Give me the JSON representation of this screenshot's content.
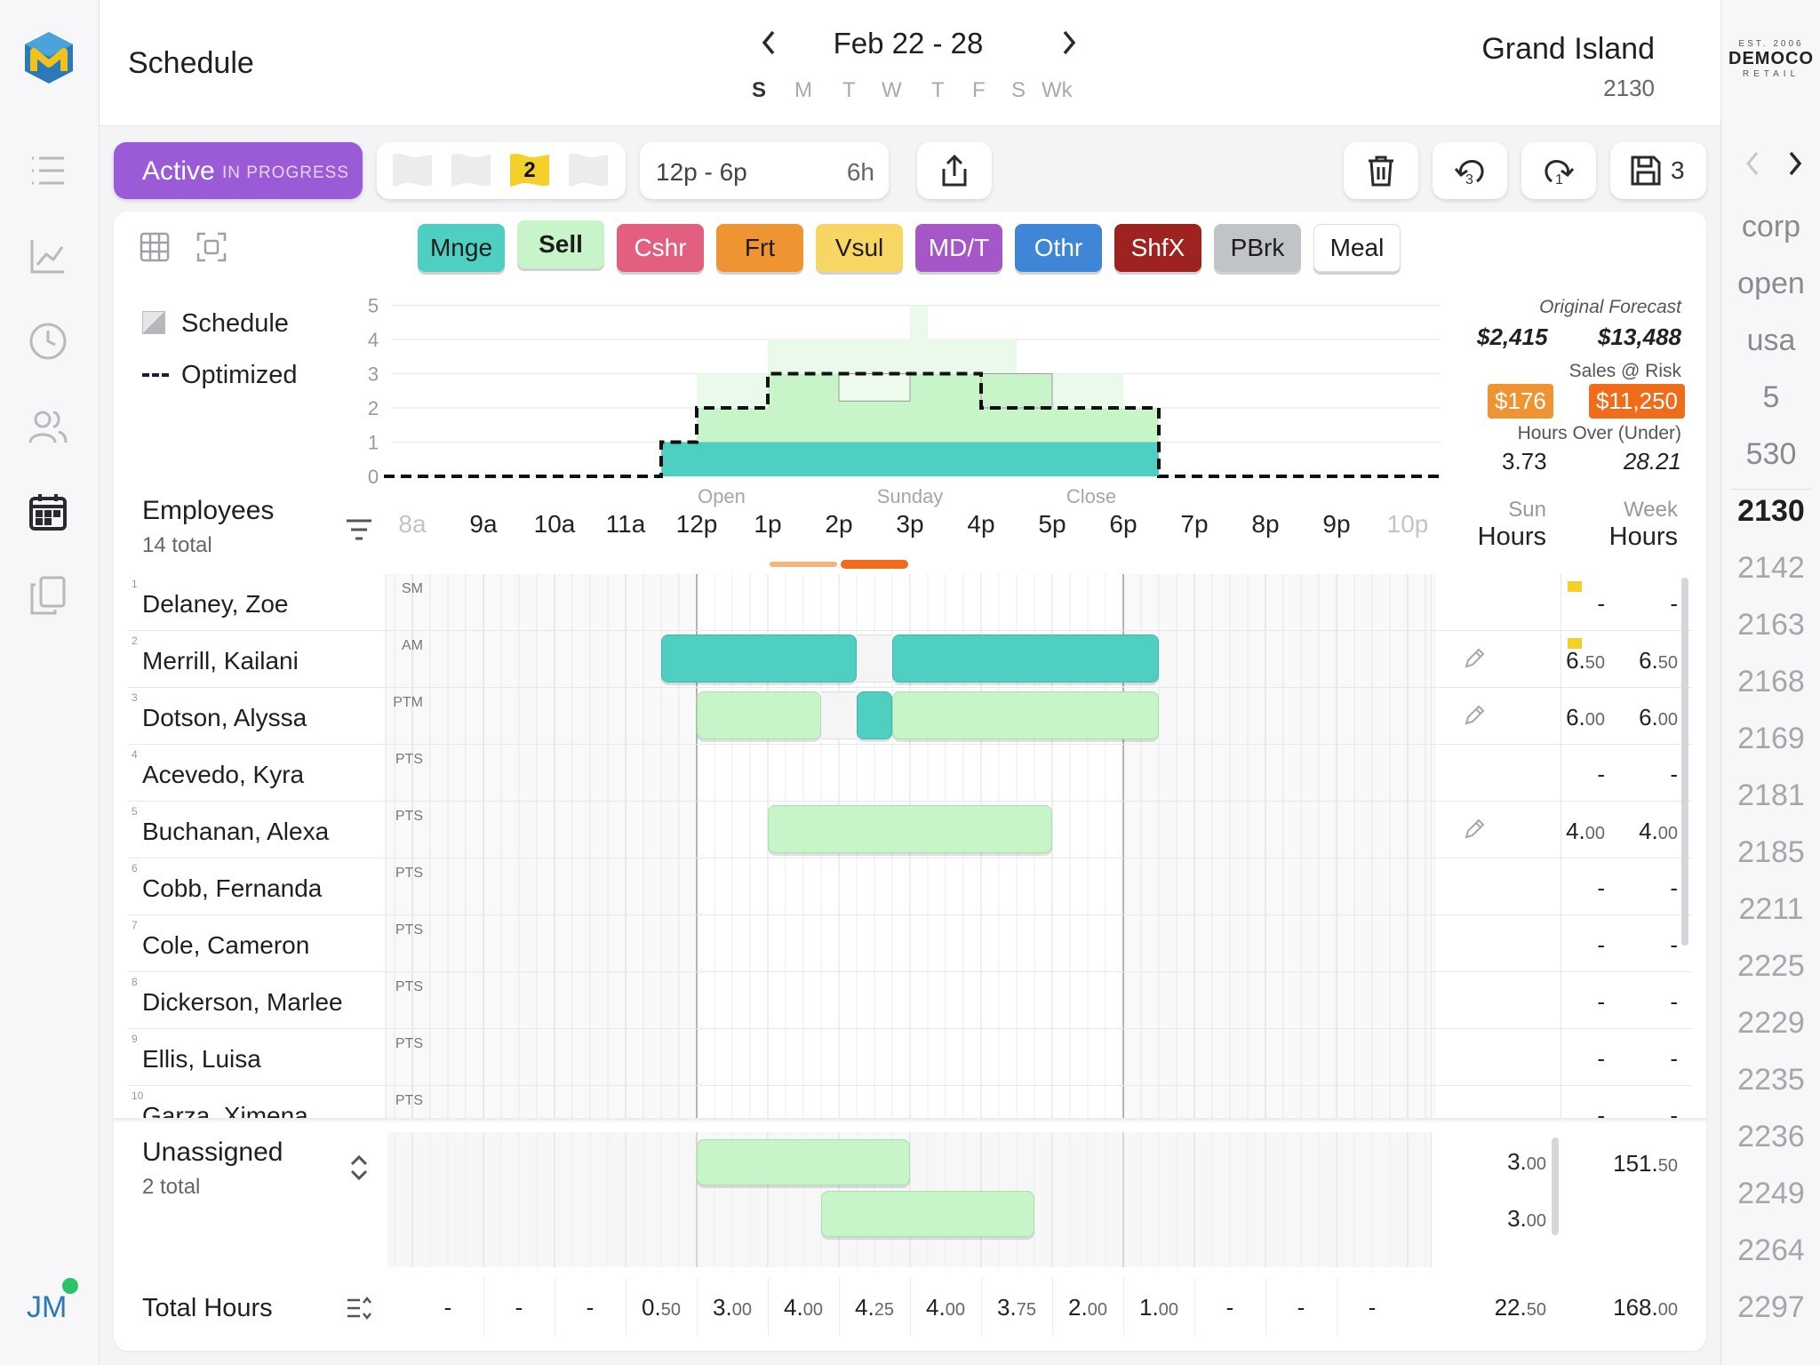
{
  "app": {
    "title": "Schedule",
    "user_initials": "JM",
    "brand_logo_lines": [
      "EST. 2006",
      "DEMOCO",
      "RETAIL"
    ]
  },
  "header": {
    "date_range": "Feb 22 - 28",
    "days": [
      "S",
      "M",
      "T",
      "W",
      "T",
      "F",
      "S",
      "Wk"
    ],
    "store_name": "Grand Island",
    "store_number": "2130"
  },
  "toolbar": {
    "status_main": "Active",
    "status_sub": "IN PROGRESS",
    "flag_count": "2",
    "time_range": "12p - 6p",
    "time_duration": "6h",
    "undo_count": "3",
    "redo_count": "1",
    "save_count": "3"
  },
  "chips": [
    {
      "label": "Mnge",
      "color": "#4fcec2",
      "text": "#1d1d1d"
    },
    {
      "label": "Sell",
      "color": "#c7f4c8",
      "text": "#1d1d1d"
    },
    {
      "label": "Cshr",
      "color": "#e35f80",
      "text": "#ffffff"
    },
    {
      "label": "Frt",
      "color": "#ef9432",
      "text": "#1d1d1d"
    },
    {
      "label": "Vsul",
      "color": "#f6d764",
      "text": "#1d1d1d"
    },
    {
      "label": "MD/T",
      "color": "#a557c7",
      "text": "#ffffff"
    },
    {
      "label": "Othr",
      "color": "#3f86d6",
      "text": "#ffffff"
    },
    {
      "label": "ShfX",
      "color": "#9e2320",
      "text": "#ffffff"
    },
    {
      "label": "PBrk",
      "color": "#c0c3c7",
      "text": "#1d1d1d"
    },
    {
      "label": "Meal",
      "color": "#ffffff",
      "text": "#1d1d1d"
    }
  ],
  "legend": {
    "schedule": "Schedule",
    "optimized": "Optimized"
  },
  "chart_data": {
    "type": "area",
    "y_ticks": [
      "5",
      "4",
      "3",
      "2",
      "1",
      "0"
    ],
    "ylim": [
      0,
      5
    ],
    "x": [
      "8a",
      "9a",
      "10a",
      "11a",
      "12p",
      "1p",
      "2p",
      "3p",
      "4p",
      "5p",
      "6p",
      "7p",
      "8p",
      "9p",
      "10p"
    ],
    "series": [
      {
        "name": "Schedule",
        "values": [
          0,
          0,
          0,
          0,
          2,
          3,
          3,
          3,
          2,
          2,
          0,
          0,
          0,
          0,
          0
        ]
      },
      {
        "name": "Optimized",
        "values": [
          0,
          0,
          0,
          0.5,
          1.5,
          3,
          3,
          3,
          3,
          2,
          0,
          0,
          0,
          0,
          0
        ]
      }
    ],
    "annotations": {
      "open": "Open",
      "day": "Sunday",
      "close": "Close"
    }
  },
  "forecast": {
    "original_label": "Original Forecast",
    "original_day": "$2,415",
    "original_week": "$13,488",
    "risk_label": "Sales @ Risk",
    "risk_day": "$176",
    "risk_week": "$11,250",
    "over_label": "Hours Over (Under)",
    "over_day": "3.73",
    "over_week": "28.21"
  },
  "employees": {
    "title": "Employees",
    "count": "14 total",
    "col_sun_top": "Sun",
    "col_sun_bottom": "Hours",
    "col_week_top": "Week",
    "col_week_bottom": "Hours",
    "rows": [
      {
        "idx": "1",
        "name": "Delaney, Zoe",
        "role": "SM",
        "sun": "-",
        "sun_dec": "",
        "week": "-",
        "week_dec": ""
      },
      {
        "idx": "2",
        "name": "Merrill, Kailani",
        "role": "AM",
        "sun": "6.",
        "sun_dec": "50",
        "week": "6.",
        "week_dec": "50"
      },
      {
        "idx": "3",
        "name": "Dotson, Alyssa",
        "role": "PTM",
        "sun": "6.",
        "sun_dec": "00",
        "week": "6.",
        "week_dec": "00"
      },
      {
        "idx": "4",
        "name": "Acevedo, Kyra",
        "role": "PTS",
        "sun": "-",
        "sun_dec": "",
        "week": "-",
        "week_dec": ""
      },
      {
        "idx": "5",
        "name": "Buchanan, Alexa",
        "role": "PTS",
        "sun": "4.",
        "sun_dec": "00",
        "week": "4.",
        "week_dec": "00"
      },
      {
        "idx": "6",
        "name": "Cobb, Fernanda",
        "role": "PTS",
        "sun": "-",
        "sun_dec": "",
        "week": "-",
        "week_dec": ""
      },
      {
        "idx": "7",
        "name": "Cole, Cameron",
        "role": "PTS",
        "sun": "-",
        "sun_dec": "",
        "week": "-",
        "week_dec": ""
      },
      {
        "idx": "8",
        "name": "Dickerson, Marlee",
        "role": "PTS",
        "sun": "-",
        "sun_dec": "",
        "week": "-",
        "week_dec": ""
      },
      {
        "idx": "9",
        "name": "Ellis, Luisa",
        "role": "PTS",
        "sun": "-",
        "sun_dec": "",
        "week": "-",
        "week_dec": ""
      },
      {
        "idx": "10",
        "name": "Garza, Ximena",
        "role": "PTS",
        "sun": "-",
        "sun_dec": "",
        "week": "-",
        "week_dec": ""
      }
    ]
  },
  "unassigned": {
    "title": "Unassigned",
    "count": "2 total",
    "rows": [
      {
        "sun": "3.",
        "sun_dec": "00"
      },
      {
        "sun": "3.",
        "sun_dec": "00"
      }
    ],
    "week_total": "151.",
    "week_total_dec": "50"
  },
  "totals": {
    "label": "Total Hours",
    "cells": [
      {
        "int": "-",
        "dec": ""
      },
      {
        "int": "-",
        "dec": ""
      },
      {
        "int": "-",
        "dec": ""
      },
      {
        "int": "0.",
        "dec": "50"
      },
      {
        "int": "3.",
        "dec": "00"
      },
      {
        "int": "4.",
        "dec": "00"
      },
      {
        "int": "4.",
        "dec": "25"
      },
      {
        "int": "4.",
        "dec": "00"
      },
      {
        "int": "3.",
        "dec": "75"
      },
      {
        "int": "2.",
        "dec": "00"
      },
      {
        "int": "1.",
        "dec": "00"
      },
      {
        "int": "-",
        "dec": ""
      },
      {
        "int": "-",
        "dec": ""
      },
      {
        "int": "-",
        "dec": ""
      }
    ],
    "sun_int": "22.",
    "sun_dec": "50",
    "week_int": "168.",
    "week_dec": "00"
  },
  "stores": {
    "items": [
      "corp",
      "open",
      "usa",
      "5",
      "530",
      "2130",
      "2142",
      "2163",
      "2168",
      "2169",
      "2181",
      "2185",
      "2211",
      "2225",
      "2229",
      "2235",
      "2236",
      "2249",
      "2264",
      "2297"
    ],
    "selected": "2130"
  }
}
